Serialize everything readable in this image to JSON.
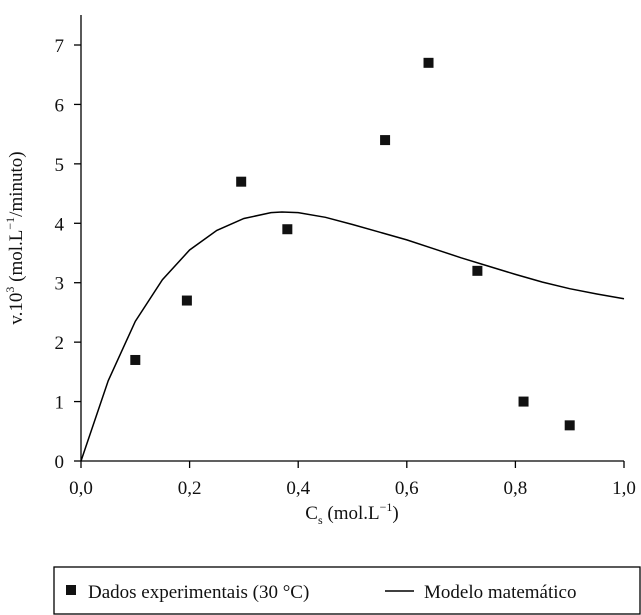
{
  "chart_data": {
    "type": "scatter",
    "title": "",
    "xlabel": {
      "main": "C",
      "sub": "s",
      "rest": " (mol.L",
      "sup": "−1",
      "end": ")"
    },
    "ylabel": {
      "main": "v.10",
      "sup1": "3",
      "rest": " (mol.L",
      "sup2": "−1",
      "end": "/minuto)"
    },
    "xlim": [
      0,
      1.0
    ],
    "ylim": [
      0,
      7.5
    ],
    "x_ticks": [
      0.0,
      0.2,
      0.4,
      0.6,
      0.8,
      1.0
    ],
    "x_tick_labels": [
      "0,0",
      "0,2",
      "0,4",
      "0,6",
      "0,8",
      "1,0"
    ],
    "y_ticks": [
      0,
      1,
      2,
      3,
      4,
      5,
      6,
      7
    ],
    "y_tick_labels": [
      "0",
      "1",
      "2",
      "3",
      "4",
      "5",
      "6",
      "7"
    ],
    "grid": false,
    "legend_position": "bottom",
    "series": [
      {
        "name": "Dados experimentais (30 °C)",
        "kind": "scatter",
        "marker": "square",
        "color": "#111111",
        "points": [
          {
            "x": 0.1,
            "y": 1.7
          },
          {
            "x": 0.195,
            "y": 2.7
          },
          {
            "x": 0.295,
            "y": 4.7
          },
          {
            "x": 0.38,
            "y": 3.9
          },
          {
            "x": 0.56,
            "y": 5.4
          },
          {
            "x": 0.64,
            "y": 6.7
          },
          {
            "x": 0.73,
            "y": 3.2
          },
          {
            "x": 0.815,
            "y": 1.0
          },
          {
            "x": 0.9,
            "y": 0.6
          }
        ]
      },
      {
        "name": "Modelo matemático",
        "kind": "line",
        "color": "#000000",
        "points": [
          {
            "x": 0.0,
            "y": 0.0
          },
          {
            "x": 0.05,
            "y": 1.35
          },
          {
            "x": 0.1,
            "y": 2.35
          },
          {
            "x": 0.15,
            "y": 3.05
          },
          {
            "x": 0.2,
            "y": 3.55
          },
          {
            "x": 0.25,
            "y": 3.88
          },
          {
            "x": 0.3,
            "y": 4.08
          },
          {
            "x": 0.35,
            "y": 4.18
          },
          {
            "x": 0.37,
            "y": 4.19
          },
          {
            "x": 0.4,
            "y": 4.18
          },
          {
            "x": 0.45,
            "y": 4.1
          },
          {
            "x": 0.5,
            "y": 3.98
          },
          {
            "x": 0.55,
            "y": 3.85
          },
          {
            "x": 0.6,
            "y": 3.72
          },
          {
            "x": 0.65,
            "y": 3.57
          },
          {
            "x": 0.7,
            "y": 3.42
          },
          {
            "x": 0.75,
            "y": 3.28
          },
          {
            "x": 0.8,
            "y": 3.14
          },
          {
            "x": 0.85,
            "y": 3.01
          },
          {
            "x": 0.9,
            "y": 2.9
          },
          {
            "x": 0.95,
            "y": 2.81
          },
          {
            "x": 1.0,
            "y": 2.73
          }
        ]
      }
    ]
  }
}
